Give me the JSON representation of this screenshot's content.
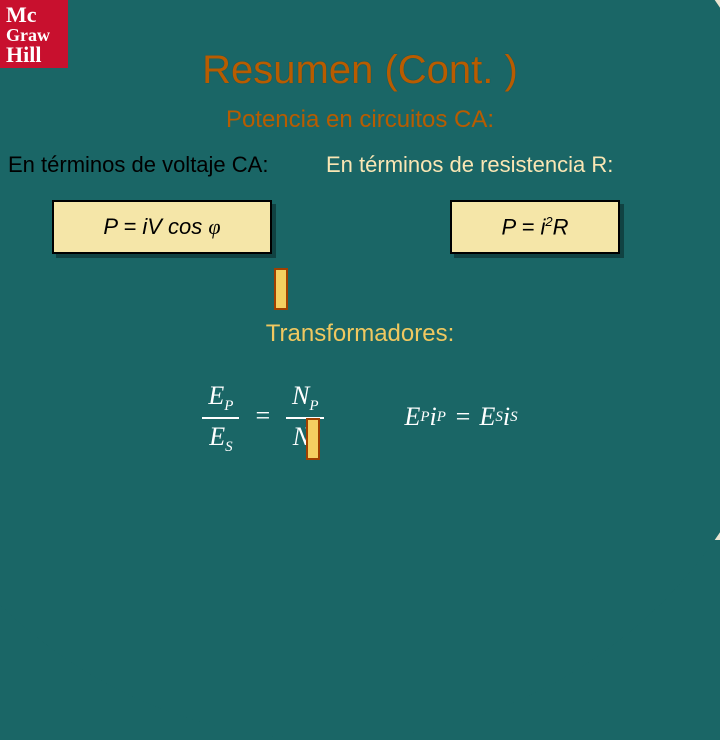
{
  "logo": {
    "line1": "Mc",
    "line2": "Graw",
    "line3": "Hill"
  },
  "slide": {
    "title": "Resumen (Cont. )",
    "subtitle": "Potencia en circuitos CA:",
    "label_voltage": "En términos de voltaje CA:",
    "label_resistance": "En términos de resistencia R:",
    "subheading": "Transformadores:"
  },
  "formulas": {
    "power_voltage": {
      "prefix": "P = i",
      "mid": "V cos ",
      "phi": "φ"
    },
    "power_resistance": {
      "prefix": "P = i",
      "exp": "2",
      "suffix": "R"
    },
    "transformer_ratio": {
      "lhs_num_base": "E",
      "lhs_num_sub": "P",
      "lhs_den_base": "E",
      "lhs_den_sub": "S",
      "rhs_num_base": "N",
      "rhs_num_sub": "P",
      "rhs_den_base": "N",
      "rhs_den_sub": "S"
    },
    "transformer_power": {
      "l1_base": "E",
      "l1_sub": "P",
      "l2_base": "i",
      "l2_sub": "P",
      "r1_base": "E",
      "r1_sub": "S",
      "r2_base": "i",
      "r2_sub": "S"
    }
  },
  "colors": {
    "title": "#b85c00",
    "accent_text": "#f0c860",
    "light_label": "#fae6b4",
    "formula_bg": "#f5e6a8",
    "teal": "#1a6666",
    "logo_bg": "#c8102e"
  }
}
